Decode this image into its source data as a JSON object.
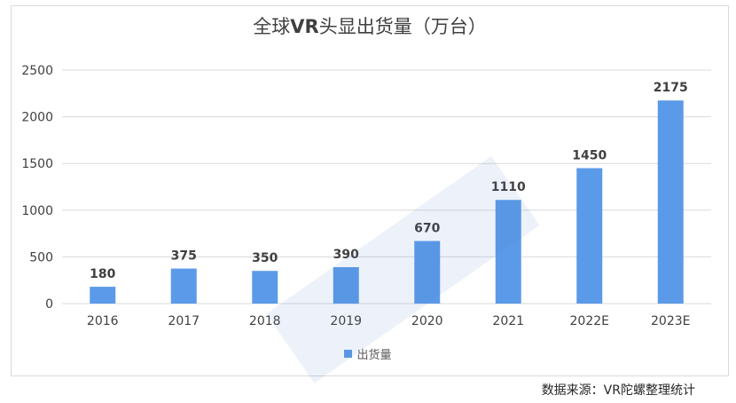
{
  "chart_data": {
    "type": "bar",
    "title": "全球VR头显出货量（万台）",
    "categories": [
      "2016",
      "2017",
      "2018",
      "2019",
      "2020",
      "2021",
      "2022E",
      "2023E"
    ],
    "series": [
      {
        "name": "出货量",
        "values": [
          180,
          375,
          350,
          390,
          670,
          1110,
          1450,
          2175
        ]
      }
    ],
    "ylim": [
      0,
      2500
    ],
    "yticks": [
      0,
      500,
      1000,
      1500,
      2000,
      2500
    ],
    "grid": true,
    "legend_position": "bottom",
    "bar_color": "#5b9ae8",
    "data_labels": true
  },
  "source_note": "数据来源：VR陀螺整理统计"
}
